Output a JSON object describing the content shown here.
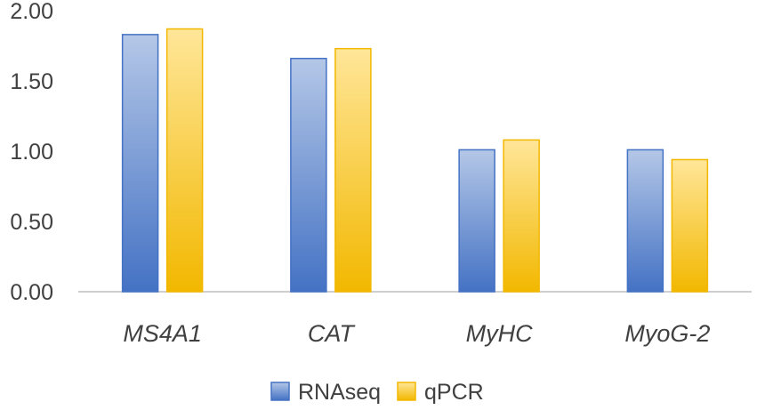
{
  "chart_data": {
    "type": "bar",
    "title": "",
    "xlabel": "",
    "ylabel": "",
    "categories": [
      "MS4A1",
      "CAT",
      "MyHC",
      "MyoG-2"
    ],
    "series": [
      {
        "name": "RNAseq",
        "values": [
          1.83,
          1.66,
          1.01,
          1.01
        ],
        "color": "#4472C4",
        "color_light": "#B4C7E7"
      },
      {
        "name": "qPCR",
        "values": [
          1.87,
          1.73,
          1.08,
          0.94
        ],
        "color": "#F2B800",
        "color_light": "#FFE699"
      }
    ],
    "ylim": [
      0,
      2.0
    ],
    "yticks": [
      "0.00",
      "0.50",
      "1.00",
      "1.50",
      "2.00"
    ],
    "ytick_values": [
      0,
      0.5,
      1.0,
      1.5,
      2.0
    ],
    "grid": false,
    "legend_position": "bottom"
  }
}
